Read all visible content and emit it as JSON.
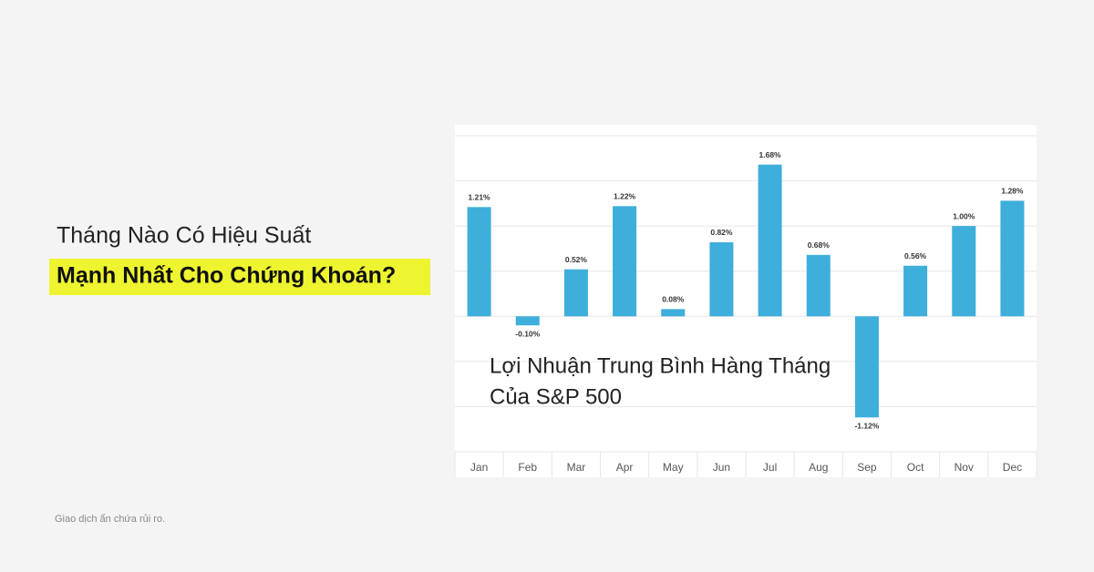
{
  "header": {
    "title_line1": "Tháng Nào Có Hiệu Suất",
    "title_line2": "Mạnh Nhất Cho Chứng Khoán?"
  },
  "chart_data": {
    "type": "bar",
    "title_lines": [
      "Lợi Nhuận Trung Bình Hàng Tháng",
      "Của S&P 500"
    ],
    "categories": [
      "Jan",
      "Feb",
      "Mar",
      "Apr",
      "May",
      "Jun",
      "Jul",
      "Aug",
      "Sep",
      "Oct",
      "Nov",
      "Dec"
    ],
    "values": [
      1.21,
      -0.1,
      0.52,
      1.22,
      0.08,
      0.82,
      1.68,
      0.68,
      -1.12,
      0.56,
      1.0,
      1.28
    ],
    "value_labels": [
      "1.21%",
      "-0.10%",
      "0.52%",
      "1.22%",
      "0.08%",
      "0.82%",
      "1.68%",
      "0.68%",
      "-1.12%",
      "0.56%",
      "1.00%",
      "1.28%"
    ],
    "color": "#3eaedb",
    "ylim": [
      -1.5,
      2
    ],
    "yticks": [
      -1.5,
      -1,
      -0.5,
      0,
      0.5,
      1,
      1.5,
      2
    ],
    "grid": true
  },
  "footer": {
    "disclaimer": "Giao dịch ẩn chứa rủi ro."
  }
}
